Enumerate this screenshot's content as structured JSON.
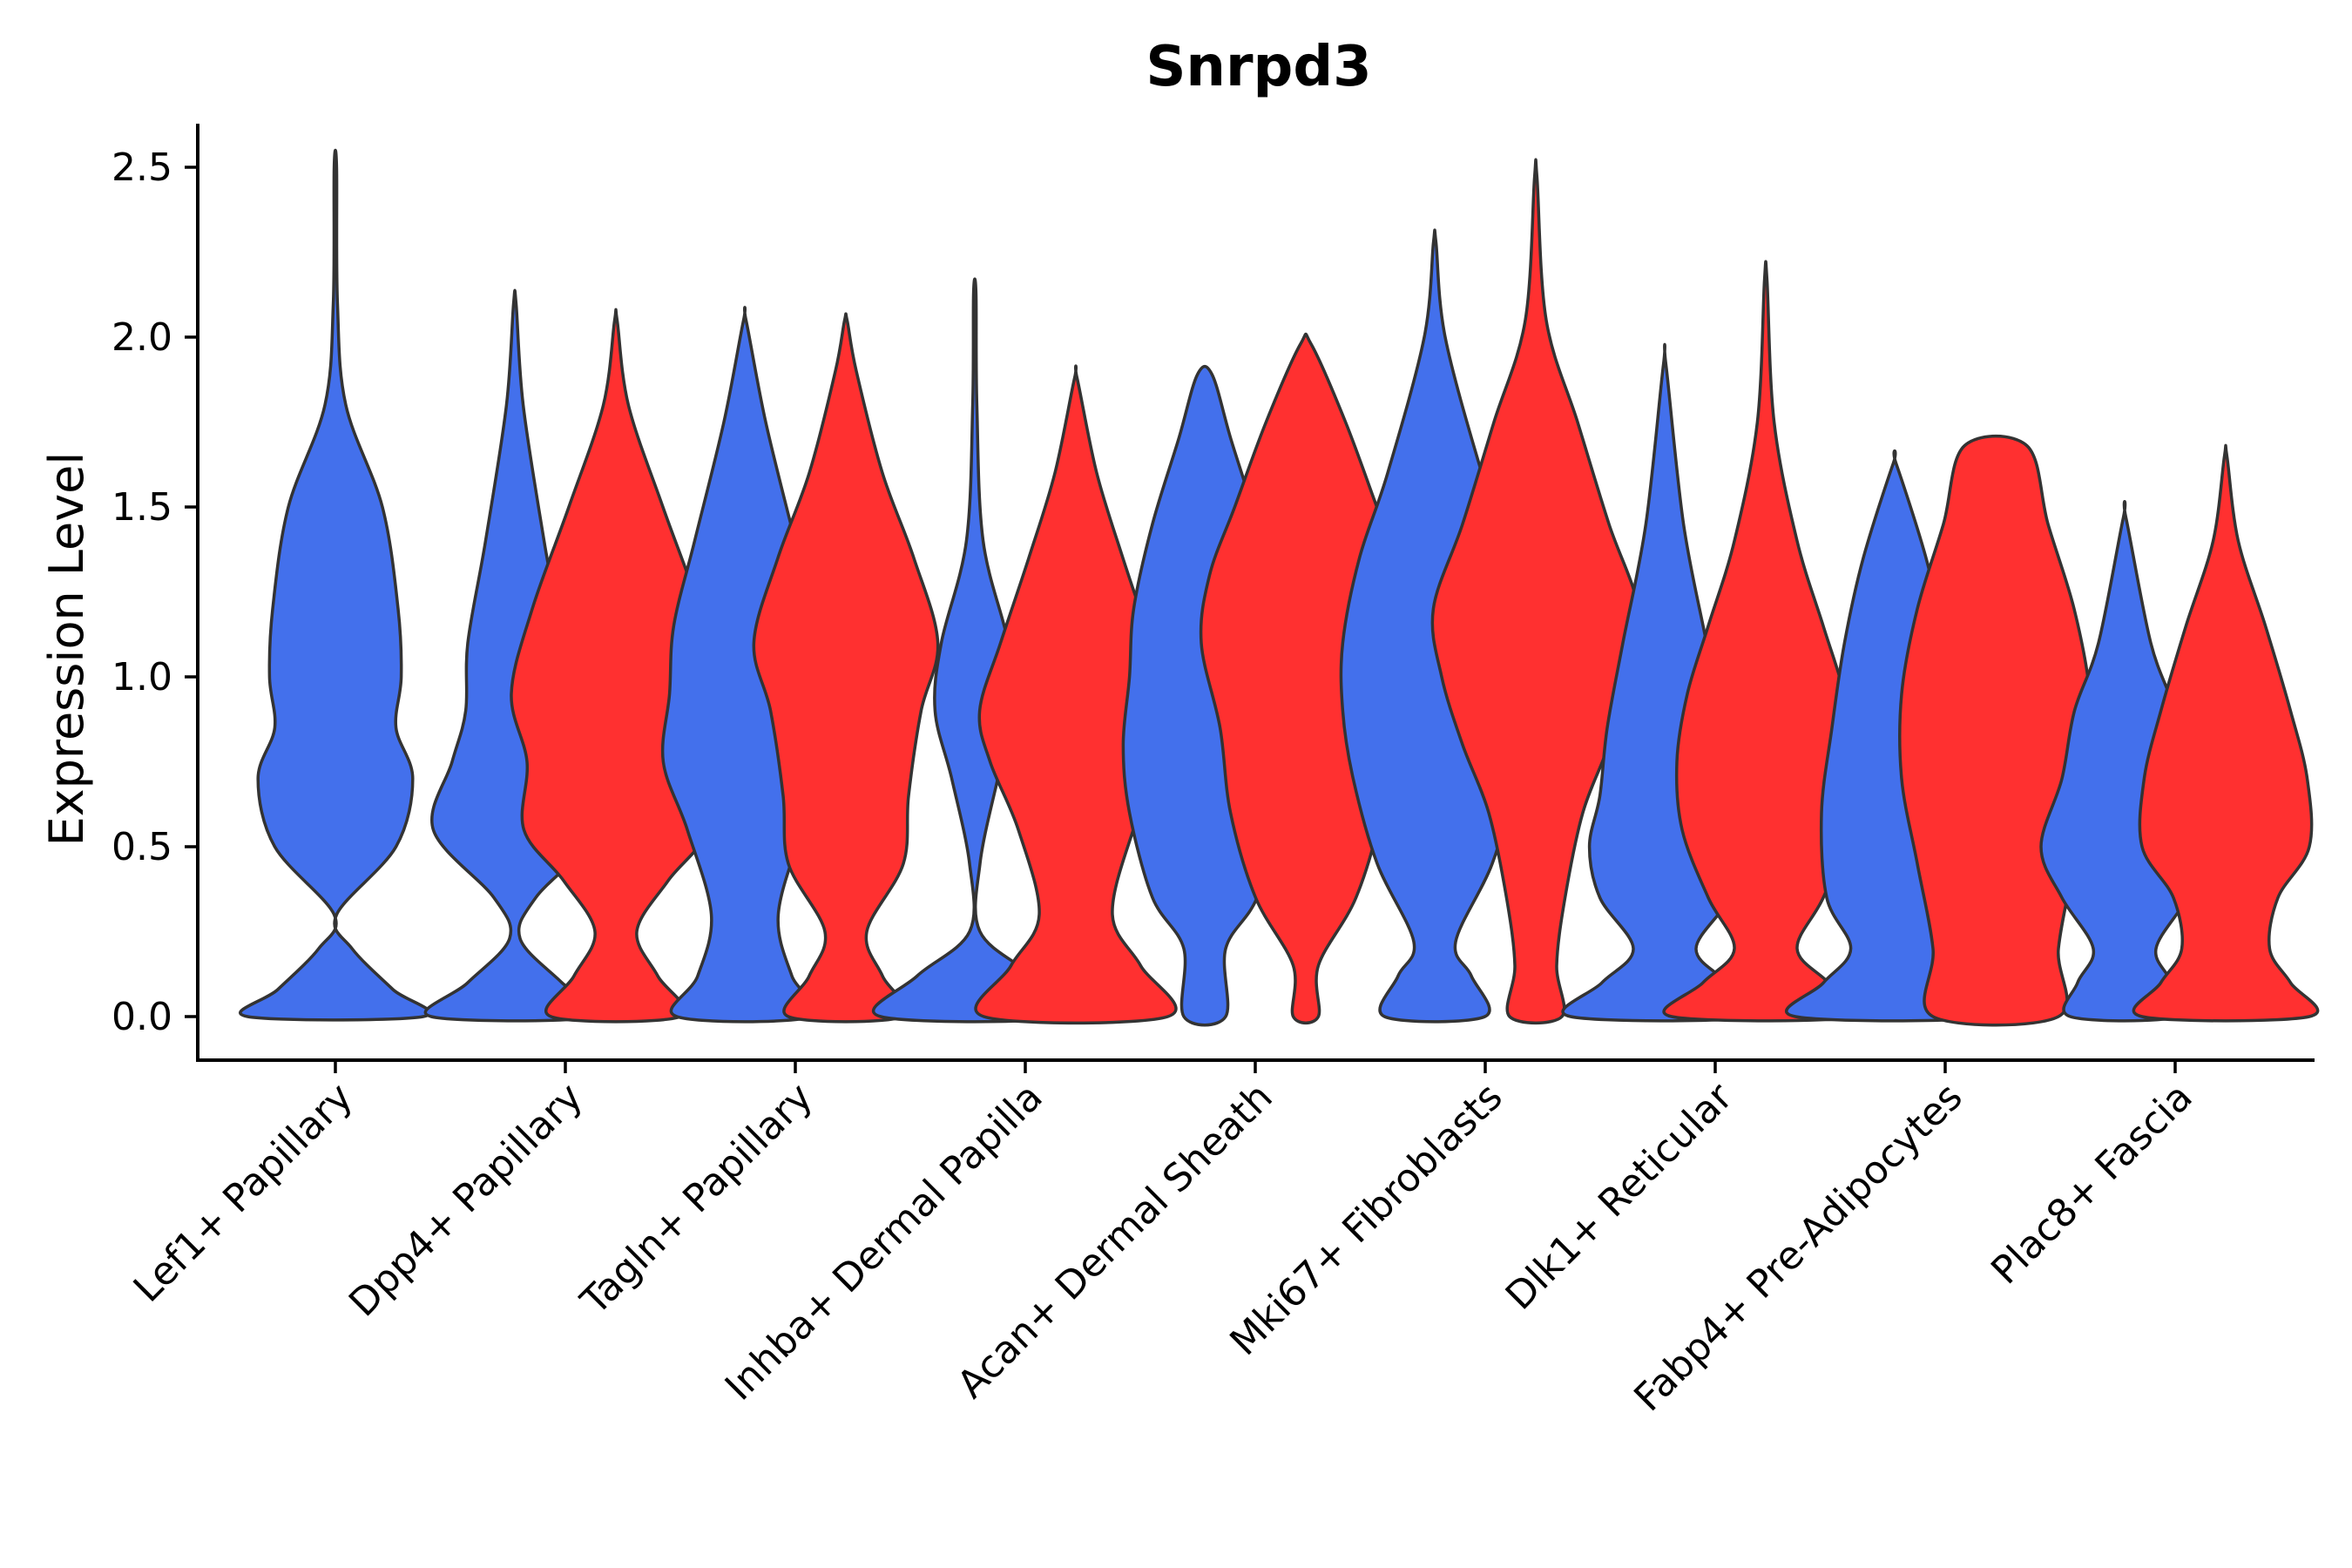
{
  "chart_data": {
    "type": "violin",
    "title": "Snrpd3",
    "xlabel": "",
    "ylabel": "Expression Level",
    "ylim": [
      -0.12,
      2.65
    ],
    "yticks": [
      "0.0",
      "0.5",
      "1.0",
      "1.5",
      "2.0",
      "2.5"
    ],
    "ytick_values": [
      0,
      0.5,
      1.0,
      1.5,
      2.0,
      2.5
    ],
    "grid": false,
    "legend": "none",
    "colors": {
      "blue": "#4370EC",
      "red": "#FF3030",
      "outline": "#333333"
    },
    "categories": [
      "Lef1+ Papillary",
      "Dpp4+ Papillary",
      "Tagln+ Papillary",
      "Inhba+ Dermal Papilla",
      "Acan+ Dermal Sheath",
      "Mki67+ Fibroblasts",
      "Dlk1+ Reticular",
      "Fabp4+ Pre-Adipocytes",
      "Plac8+ Fascia"
    ],
    "violins": [
      {
        "category": "Lef1+ Papillary",
        "group": "blue",
        "max": 2.5,
        "profile": [
          [
            0,
            0.84
          ],
          [
            0.08,
            0.55
          ],
          [
            0.2,
            0.16
          ],
          [
            0.3,
            0.0
          ],
          [
            0.5,
            0.58
          ],
          [
            0.7,
            0.74
          ],
          [
            0.85,
            0.58
          ],
          [
            1.0,
            0.63
          ],
          [
            1.2,
            0.6
          ],
          [
            1.5,
            0.45
          ],
          [
            1.8,
            0.1
          ],
          [
            2.1,
            0.02
          ],
          [
            2.5,
            0.0
          ]
        ]
      },
      {
        "category": "Dpp4+ Papillary",
        "group": "blue",
        "max": 2.1,
        "profile": [
          [
            0,
            0.8
          ],
          [
            0.1,
            0.45
          ],
          [
            0.23,
            0.05
          ],
          [
            0.35,
            0.2
          ],
          [
            0.55,
            0.78
          ],
          [
            0.75,
            0.6
          ],
          [
            0.9,
            0.47
          ],
          [
            1.1,
            0.45
          ],
          [
            1.4,
            0.28
          ],
          [
            1.8,
            0.08
          ],
          [
            2.1,
            0.0
          ]
        ]
      },
      {
        "category": "Dpp4+ Papillary",
        "group": "red",
        "max": 2.05,
        "profile": [
          [
            0,
            0.62
          ],
          [
            0.12,
            0.4
          ],
          [
            0.25,
            0.2
          ],
          [
            0.4,
            0.5
          ],
          [
            0.55,
            0.88
          ],
          [
            0.75,
            0.85
          ],
          [
            0.95,
            1.0
          ],
          [
            1.2,
            0.8
          ],
          [
            1.5,
            0.45
          ],
          [
            1.8,
            0.12
          ],
          [
            2.05,
            0.0
          ]
        ]
      },
      {
        "category": "Tagln+ Papillary",
        "group": "blue",
        "max": 2.05,
        "profile": [
          [
            0,
            0.65
          ],
          [
            0.12,
            0.45
          ],
          [
            0.3,
            0.32
          ],
          [
            0.55,
            0.55
          ],
          [
            0.75,
            0.78
          ],
          [
            0.95,
            0.72
          ],
          [
            1.15,
            0.68
          ],
          [
            1.4,
            0.48
          ],
          [
            1.75,
            0.2
          ],
          [
            2.05,
            0.0
          ]
        ]
      },
      {
        "category": "Tagln+ Papillary",
        "group": "red",
        "max": 2.05,
        "profile": [
          [
            0,
            0.55
          ],
          [
            0.12,
            0.35
          ],
          [
            0.25,
            0.2
          ],
          [
            0.45,
            0.55
          ],
          [
            0.65,
            0.6
          ],
          [
            0.9,
            0.72
          ],
          [
            1.1,
            0.88
          ],
          [
            1.35,
            0.65
          ],
          [
            1.6,
            0.35
          ],
          [
            1.9,
            0.1
          ],
          [
            2.05,
            0.0
          ]
        ]
      },
      {
        "category": "Inhba+ Dermal Papilla",
        "group": "blue",
        "max": 2.13,
        "profile": [
          [
            0,
            0.9
          ],
          [
            0.12,
            0.55
          ],
          [
            0.25,
            0.05
          ],
          [
            0.45,
            0.05
          ],
          [
            0.7,
            0.22
          ],
          [
            0.9,
            0.38
          ],
          [
            1.1,
            0.32
          ],
          [
            1.4,
            0.08
          ],
          [
            1.8,
            0.02
          ],
          [
            2.13,
            0.0
          ]
        ]
      },
      {
        "category": "Inhba+ Dermal Papilla",
        "group": "red",
        "max": 1.88,
        "profile": [
          [
            0,
            0.88
          ],
          [
            0.15,
            0.62
          ],
          [
            0.3,
            0.35
          ],
          [
            0.55,
            0.55
          ],
          [
            0.75,
            0.82
          ],
          [
            0.9,
            0.92
          ],
          [
            1.1,
            0.72
          ],
          [
            1.35,
            0.45
          ],
          [
            1.6,
            0.2
          ],
          [
            1.88,
            0.0
          ]
        ]
      },
      {
        "category": "Acan+ Dermal Sheath",
        "group": "blue",
        "max": 1.89,
        "profile": [
          [
            0,
            0.2
          ],
          [
            0.2,
            0.2
          ],
          [
            0.35,
            0.5
          ],
          [
            0.6,
            0.72
          ],
          [
            0.8,
            0.78
          ],
          [
            1.0,
            0.72
          ],
          [
            1.2,
            0.68
          ],
          [
            1.45,
            0.5
          ],
          [
            1.7,
            0.25
          ],
          [
            1.89,
            0.07
          ]
        ]
      },
      {
        "category": "Acan+ Dermal Sheath",
        "group": "red",
        "max": 1.98,
        "profile": [
          [
            0,
            0.12
          ],
          [
            0.15,
            0.12
          ],
          [
            0.35,
            0.48
          ],
          [
            0.6,
            0.72
          ],
          [
            0.85,
            0.82
          ],
          [
            1.1,
            1.0
          ],
          [
            1.3,
            0.92
          ],
          [
            1.5,
            0.68
          ],
          [
            1.75,
            0.38
          ],
          [
            1.98,
            0.05
          ]
        ]
      },
      {
        "category": "Mki67+ Fibroblasts",
        "group": "blue",
        "max": 2.28,
        "profile": [
          [
            0,
            0.48
          ],
          [
            0.12,
            0.35
          ],
          [
            0.22,
            0.2
          ],
          [
            0.45,
            0.55
          ],
          [
            0.7,
            0.78
          ],
          [
            0.9,
            0.88
          ],
          [
            1.1,
            0.88
          ],
          [
            1.35,
            0.72
          ],
          [
            1.6,
            0.45
          ],
          [
            2.0,
            0.1
          ],
          [
            2.28,
            0.0
          ]
        ]
      },
      {
        "category": "Mki67+ Fibroblasts",
        "group": "red",
        "max": 2.47,
        "profile": [
          [
            0,
            0.25
          ],
          [
            0.15,
            0.2
          ],
          [
            0.35,
            0.28
          ],
          [
            0.6,
            0.45
          ],
          [
            0.8,
            0.7
          ],
          [
            1.0,
            0.9
          ],
          [
            1.2,
            0.98
          ],
          [
            1.45,
            0.7
          ],
          [
            1.75,
            0.4
          ],
          [
            2.05,
            0.1
          ],
          [
            2.47,
            0.0
          ]
        ]
      },
      {
        "category": "Dlk1+ Reticular",
        "group": "blue",
        "max": 1.92,
        "profile": [
          [
            0,
            0.9
          ],
          [
            0.1,
            0.6
          ],
          [
            0.2,
            0.3
          ],
          [
            0.35,
            0.62
          ],
          [
            0.5,
            0.72
          ],
          [
            0.65,
            0.62
          ],
          [
            0.85,
            0.55
          ],
          [
            1.1,
            0.4
          ],
          [
            1.45,
            0.18
          ],
          [
            1.92,
            0.0
          ]
        ]
      },
      {
        "category": "Dlk1+ Reticular",
        "group": "red",
        "max": 2.17,
        "profile": [
          [
            0,
            0.9
          ],
          [
            0.1,
            0.6
          ],
          [
            0.2,
            0.3
          ],
          [
            0.35,
            0.55
          ],
          [
            0.55,
            0.8
          ],
          [
            0.75,
            0.85
          ],
          [
            0.95,
            0.75
          ],
          [
            1.15,
            0.55
          ],
          [
            1.4,
            0.3
          ],
          [
            1.75,
            0.08
          ],
          [
            2.17,
            0.0
          ]
        ]
      },
      {
        "category": "Fabp4+ Pre-Adipocytes",
        "group": "blue",
        "max": 1.63,
        "profile": [
          [
            0,
            0.95
          ],
          [
            0.1,
            0.68
          ],
          [
            0.2,
            0.42
          ],
          [
            0.35,
            0.65
          ],
          [
            0.6,
            0.7
          ],
          [
            0.85,
            0.6
          ],
          [
            1.1,
            0.48
          ],
          [
            1.35,
            0.3
          ],
          [
            1.63,
            0.0
          ]
        ]
      },
      {
        "category": "Fabp4+ Pre-Adipocytes",
        "group": "red",
        "max": 1.68,
        "profile": [
          [
            0,
            0.6
          ],
          [
            0.2,
            0.6
          ],
          [
            0.45,
            0.75
          ],
          [
            0.7,
            0.9
          ],
          [
            0.95,
            0.9
          ],
          [
            1.2,
            0.75
          ],
          [
            1.45,
            0.5
          ],
          [
            1.68,
            0.3
          ]
        ]
      },
      {
        "category": "Plac8+ Fascia",
        "group": "blue",
        "max": 1.47,
        "profile": [
          [
            0,
            0.52
          ],
          [
            0.1,
            0.45
          ],
          [
            0.2,
            0.3
          ],
          [
            0.35,
            0.6
          ],
          [
            0.5,
            0.8
          ],
          [
            0.7,
            0.6
          ],
          [
            0.9,
            0.48
          ],
          [
            1.1,
            0.25
          ],
          [
            1.47,
            0.0
          ]
        ]
      },
      {
        "category": "Plac8+ Fascia",
        "group": "red",
        "max": 1.65,
        "profile": [
          [
            0,
            0.8
          ],
          [
            0.1,
            0.62
          ],
          [
            0.2,
            0.42
          ],
          [
            0.35,
            0.5
          ],
          [
            0.5,
            0.8
          ],
          [
            0.7,
            0.78
          ],
          [
            0.9,
            0.62
          ],
          [
            1.15,
            0.38
          ],
          [
            1.4,
            0.12
          ],
          [
            1.65,
            0.0
          ]
        ]
      }
    ]
  }
}
